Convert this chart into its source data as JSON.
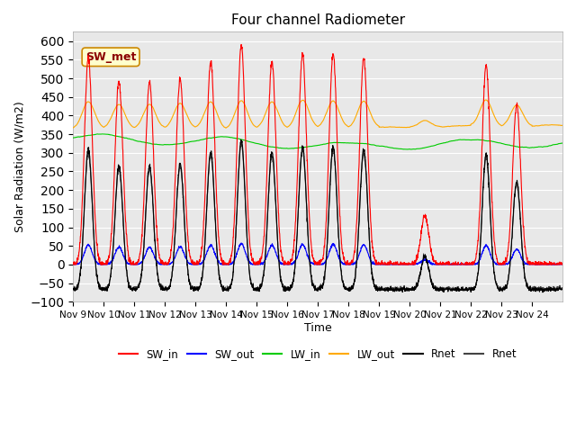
{
  "title": "Four channel Radiometer",
  "xlabel": "Time",
  "ylabel": "Solar Radiation (W/m2)",
  "ylim": [
    -100,
    625
  ],
  "yticks": [
    -100,
    -50,
    0,
    50,
    100,
    150,
    200,
    250,
    300,
    350,
    400,
    450,
    500,
    550,
    600
  ],
  "x_tick_positions": [
    0,
    1,
    2,
    3,
    4,
    5,
    6,
    7,
    8,
    9,
    10,
    11,
    12,
    13,
    14,
    15
  ],
  "x_tick_labels": [
    "Nov 9",
    "Nov 10",
    "Nov 11",
    "Nov 12",
    "Nov 13",
    "Nov 14",
    "Nov 15",
    "Nov 16",
    "Nov 17",
    "Nov 18",
    "Nov 19",
    "Nov 20",
    "Nov 21",
    "Nov 22",
    "Nov 23",
    "Nov 24"
  ],
  "annotation_text": "SW_met",
  "colors": {
    "SW_in": "#ff0000",
    "SW_out": "#0000ff",
    "LW_in": "#00cc00",
    "LW_out": "#ffaa00",
    "Rnet_black": "#000000",
    "Rnet_dark": "#444444"
  },
  "legend_labels": [
    "SW_in",
    "SW_out",
    "LW_in",
    "LW_out",
    "Rnet",
    "Rnet"
  ],
  "background_color": "#e8e8e8",
  "n_days": 16,
  "seed": 42
}
